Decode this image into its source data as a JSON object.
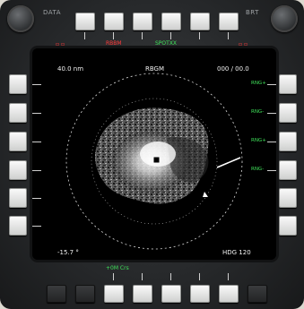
{
  "knobs": {
    "left_label": "DATA",
    "right_label": "BRT"
  },
  "top_tabs": {
    "left_red": "▫ ▫",
    "right_red": "▫ ▫",
    "osb_labels": [
      "",
      "RBBM",
      "",
      "SPOTXX",
      "",
      ""
    ]
  },
  "display": {
    "range": "40.0 nm",
    "mode": "RBGM",
    "coords": "000 / 00.0",
    "elevation": "-15.7 °",
    "heading": "HDG 120",
    "bottom_label": "+0M  Crs",
    "right_osb_labels": [
      "RNG+",
      "RNG-",
      "RNG+",
      "RNG-"
    ]
  },
  "colors": {
    "screen_bg": "#000000",
    "text": "#f2f2f2",
    "red": "#ff3b3b",
    "green": "#3fe25a"
  }
}
